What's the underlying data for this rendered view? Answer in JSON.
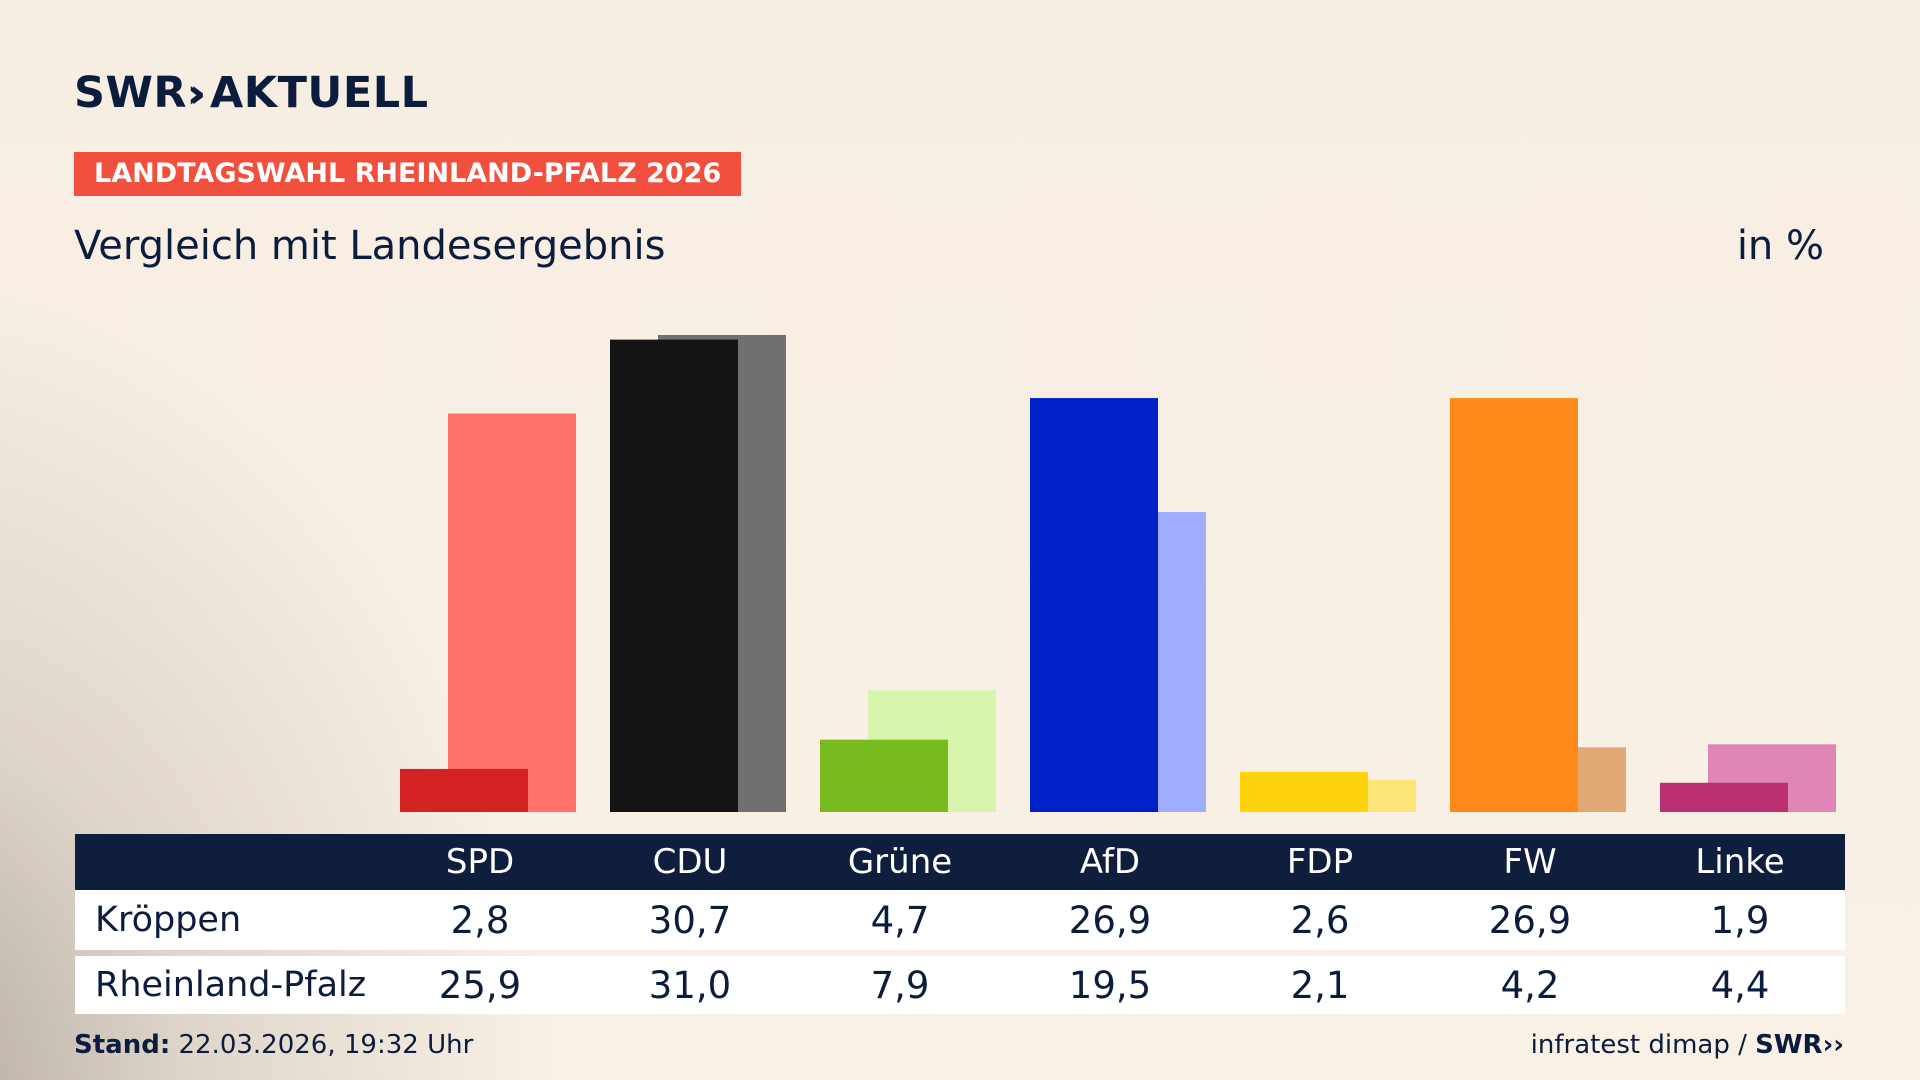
{
  "brand": {
    "logo_text": "SWR",
    "logo_chevrons": "››",
    "logo_suffix": "AKTUELL"
  },
  "kicker": "LANDTAGSWAHL RHEINLAND-PFALZ 2026",
  "title": "Vergleich mit Landesergebnis",
  "unit_label": "in %",
  "chart_data": {
    "type": "bar",
    "categories": [
      "SPD",
      "CDU",
      "Grüne",
      "AfD",
      "FDP",
      "FW",
      "Linke"
    ],
    "series": [
      {
        "name": "Kröppen",
        "values": [
          2.8,
          30.7,
          4.7,
          26.9,
          2.6,
          26.9,
          1.9
        ]
      },
      {
        "name": "Rheinland-Pfalz",
        "values": [
          25.9,
          31.0,
          7.9,
          19.5,
          2.1,
          4.2,
          4.4
        ]
      }
    ],
    "value_labels": [
      [
        "2,8",
        "30,7",
        "4,7",
        "26,9",
        "2,6",
        "26,9",
        "1,9"
      ],
      [
        "25,9",
        "31,0",
        "7,9",
        "19,5",
        "2,1",
        "4,2",
        "4,4"
      ]
    ],
    "colors_primary": [
      "#d42222",
      "#141414",
      "#77bb1d",
      "#0020c8",
      "#fdd10c",
      "#fd8a18",
      "#bc2f73"
    ],
    "colors_secondary": [
      "#ff7169",
      "#707070",
      "#d7f5ad",
      "#9fadff",
      "#fde578",
      "#dfa874",
      "#de87b4"
    ],
    "ylim": [
      0,
      31
    ],
    "grid": false,
    "legend": "table-below"
  },
  "footer": {
    "stand_label": "Stand:",
    "stand_value": "22.03.2026, 19:32 Uhr",
    "source": "infratest dimap /",
    "source_brand": "SWR››"
  }
}
